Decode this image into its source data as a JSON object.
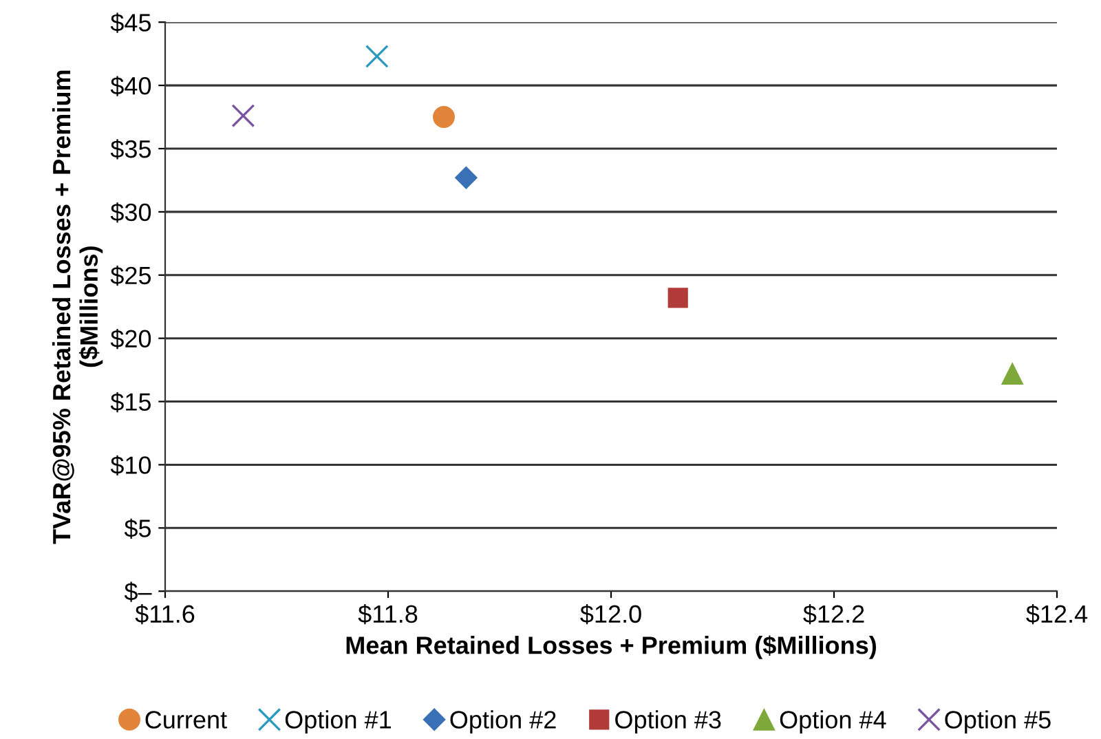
{
  "chart_data": {
    "type": "scatter",
    "xlabel": "Mean Retained Losses + Premium ($Millions)",
    "ylabel": "TVaR@95% Retained Losses + Premium\n($Millions)",
    "xlim": [
      11.6,
      12.4
    ],
    "xticks": [
      {
        "value": 11.6,
        "label": "$11.6"
      },
      {
        "value": 11.8,
        "label": "$11.8"
      },
      {
        "value": 12.0,
        "label": "$12.0"
      },
      {
        "value": 12.2,
        "label": "$12.2"
      },
      {
        "value": 12.4,
        "label": "$12.4"
      }
    ],
    "ylim": [
      0,
      45
    ],
    "yticks": [
      {
        "value": 0,
        "label": "$–"
      },
      {
        "value": 5,
        "label": "$5"
      },
      {
        "value": 10,
        "label": "$10"
      },
      {
        "value": 15,
        "label": "$15"
      },
      {
        "value": 20,
        "label": "$20"
      },
      {
        "value": 25,
        "label": "$25"
      },
      {
        "value": 30,
        "label": "$30"
      },
      {
        "value": 35,
        "label": "$35"
      },
      {
        "value": 40,
        "label": "$40"
      },
      {
        "value": 45,
        "label": "$45"
      }
    ],
    "grid": "y",
    "legend": "bottom",
    "series": [
      {
        "name": "Current",
        "color": "#e2853a",
        "marker": "circle",
        "x": [
          11.85
        ],
        "values": [
          37.5
        ]
      },
      {
        "name": "Option #1",
        "color": "#2a9bbf",
        "marker": "cross",
        "x": [
          11.79
        ],
        "values": [
          42.3
        ]
      },
      {
        "name": "Option #2",
        "color": "#3a70b5",
        "marker": "diamond",
        "x": [
          11.87
        ],
        "values": [
          32.7
        ]
      },
      {
        "name": "Option #3",
        "color": "#b23b3a",
        "marker": "square",
        "x": [
          12.06
        ],
        "values": [
          23.2
        ]
      },
      {
        "name": "Option #4",
        "color": "#7ea83a",
        "marker": "triangle",
        "x": [
          12.36
        ],
        "values": [
          17.2
        ]
      },
      {
        "name": "Option #5",
        "color": "#7a54a0",
        "marker": "cross",
        "x": [
          11.67
        ],
        "values": [
          37.6
        ]
      }
    ]
  }
}
